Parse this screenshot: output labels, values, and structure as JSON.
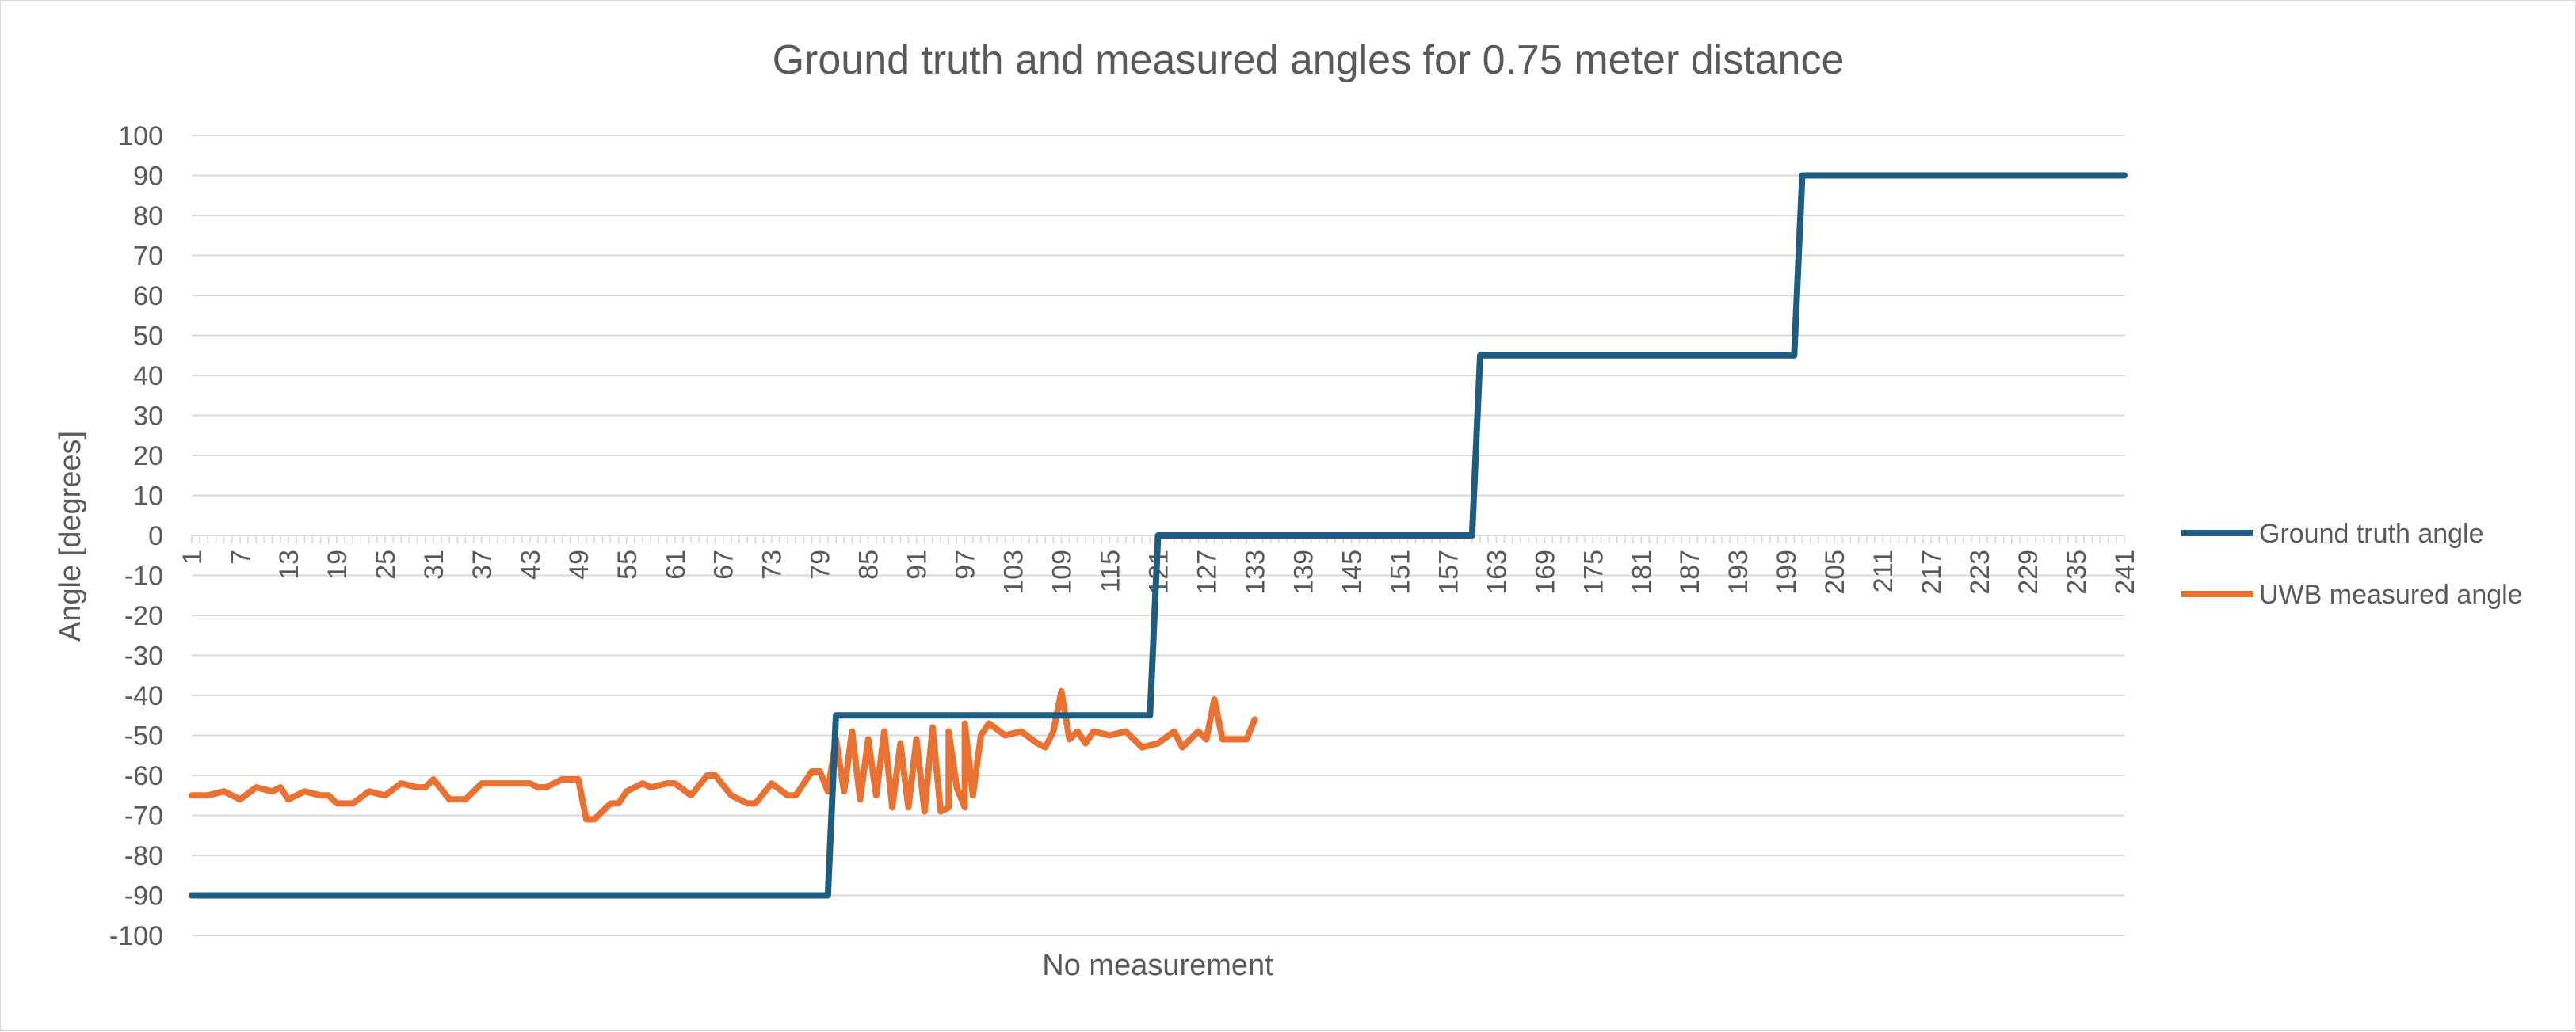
{
  "chart_data": {
    "type": "line",
    "title": "Ground truth and measured angles for 0.75 meter distance",
    "xlabel": "No measurement",
    "ylabel": "Angle [degrees]",
    "ylim": [
      -100,
      100
    ],
    "ystep": 10,
    "xlim": [
      1,
      241
    ],
    "xtick_labels": [
      "1",
      "7",
      "13",
      "19",
      "25",
      "31",
      "37",
      "43",
      "49",
      "55",
      "61",
      "67",
      "73",
      "79",
      "85",
      "91",
      "97",
      "103",
      "109",
      "115",
      "121",
      "127",
      "133",
      "139",
      "145",
      "151",
      "157",
      "163",
      "169",
      "175",
      "181",
      "187",
      "193",
      "199",
      "205",
      "211",
      "217",
      "223",
      "229",
      "235",
      "241"
    ],
    "grid": true,
    "legend_position": "right",
    "colors": {
      "ground_truth": "#1f5c82",
      "uwb": "#e97132",
      "grid": "#d9d9d9",
      "text": "#595959"
    },
    "series": [
      {
        "name": "Ground truth angle",
        "points": [
          [
            1,
            -90
          ],
          [
            80,
            -90
          ],
          [
            81,
            -45
          ],
          [
            120,
            -45
          ],
          [
            121,
            0
          ],
          [
            160,
            0
          ],
          [
            161,
            45
          ],
          [
            200,
            45
          ],
          [
            201,
            90
          ],
          [
            241,
            90
          ]
        ]
      },
      {
        "name": "UWB measured angle",
        "points": [
          [
            1,
            -65
          ],
          [
            3,
            -65
          ],
          [
            5,
            -64
          ],
          [
            7,
            -66
          ],
          [
            9,
            -63
          ],
          [
            11,
            -64
          ],
          [
            12,
            -63
          ],
          [
            13,
            -66
          ],
          [
            15,
            -64
          ],
          [
            17,
            -65
          ],
          [
            18,
            -65
          ],
          [
            19,
            -67
          ],
          [
            21,
            -67
          ],
          [
            23,
            -64
          ],
          [
            25,
            -65
          ],
          [
            27,
            -62
          ],
          [
            29,
            -63
          ],
          [
            30,
            -63
          ],
          [
            31,
            -61
          ],
          [
            33,
            -66
          ],
          [
            35,
            -66
          ],
          [
            37,
            -62
          ],
          [
            39,
            -62
          ],
          [
            41,
            -62
          ],
          [
            43,
            -62
          ],
          [
            44,
            -63
          ],
          [
            45,
            -63
          ],
          [
            47,
            -61
          ],
          [
            49,
            -61
          ],
          [
            50,
            -71
          ],
          [
            51,
            -71
          ],
          [
            53,
            -67
          ],
          [
            54,
            -67
          ],
          [
            55,
            -64
          ],
          [
            57,
            -62
          ],
          [
            58,
            -63
          ],
          [
            60,
            -62
          ],
          [
            61,
            -62
          ],
          [
            63,
            -65
          ],
          [
            65,
            -60
          ],
          [
            66,
            -60
          ],
          [
            68,
            -65
          ],
          [
            70,
            -67
          ],
          [
            71,
            -67
          ],
          [
            73,
            -62
          ],
          [
            75,
            -65
          ],
          [
            76,
            -65
          ],
          [
            78,
            -59
          ],
          [
            79,
            -59
          ],
          [
            80,
            -64
          ],
          [
            82,
            -64
          ],
          [
            84,
            -66
          ],
          [
            86,
            -65
          ],
          [
            88,
            -68
          ],
          [
            90,
            -68
          ],
          [
            92,
            -69
          ],
          [
            94,
            -69
          ],
          [
            95,
            -68
          ],
          [
            96,
            -63
          ],
          [
            97,
            -68
          ],
          [
            98,
            -65
          ],
          [
            81,
            -51
          ],
          [
            83,
            -49
          ],
          [
            85,
            -51
          ],
          [
            87,
            -49
          ],
          [
            89,
            -52
          ],
          [
            91,
            -51
          ],
          [
            93,
            -48
          ],
          [
            95,
            -49
          ],
          [
            97,
            -47
          ],
          [
            99,
            -50
          ],
          [
            100,
            -47
          ],
          [
            102,
            -50
          ],
          [
            104,
            -49
          ],
          [
            106,
            -52
          ],
          [
            107,
            -53
          ],
          [
            108,
            -49
          ],
          [
            109,
            -39
          ],
          [
            110,
            -51
          ],
          [
            111,
            -49
          ],
          [
            112,
            -52
          ],
          [
            113,
            -49
          ],
          [
            115,
            -50
          ],
          [
            117,
            -49
          ],
          [
            119,
            -53
          ],
          [
            121,
            -52
          ],
          [
            123,
            -49
          ],
          [
            124,
            -53
          ],
          [
            126,
            -49
          ],
          [
            127,
            -51
          ],
          [
            128,
            -41
          ],
          [
            129,
            -51
          ],
          [
            131,
            -51
          ],
          [
            132,
            -51
          ],
          [
            133,
            -46
          ]
        ]
      }
    ]
  },
  "legend": {
    "ground_truth_label": "Ground truth angle",
    "uwb_label": "UWB measured angle"
  }
}
